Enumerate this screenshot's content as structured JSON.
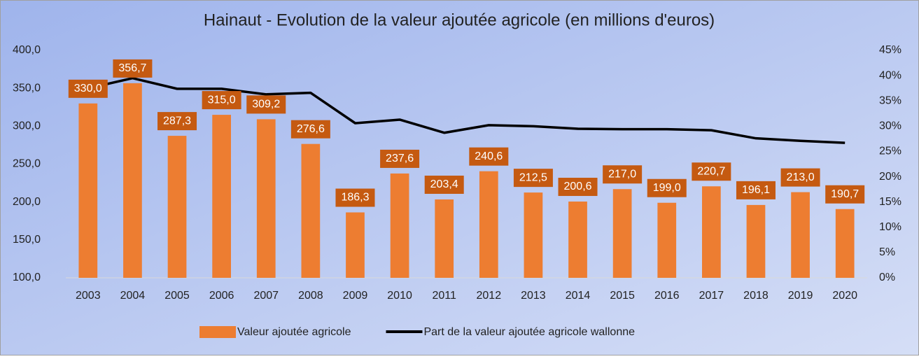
{
  "chart_data": {
    "type": "bar_line",
    "title": "Hainaut - Evolution de la valeur ajoutée agricole (en millions d'euros)",
    "categories": [
      "2003",
      "2004",
      "2005",
      "2006",
      "2007",
      "2008",
      "2009",
      "2010",
      "2011",
      "2012",
      "2013",
      "2014",
      "2015",
      "2016",
      "2017",
      "2018",
      "2019",
      "2020"
    ],
    "series": [
      {
        "name": "Valeur ajoutée agricole",
        "type": "bar",
        "color": "#ed7d31",
        "label_color": "#c55a11",
        "values": [
          330.0,
          356.7,
          287.3,
          315.0,
          309.2,
          276.6,
          186.3,
          237.6,
          203.4,
          240.6,
          212.5,
          200.6,
          217.0,
          199.0,
          220.7,
          196.1,
          213.0,
          190.7
        ],
        "value_labels": [
          "330,0",
          "356,7",
          "287,3",
          "315,0",
          "309,2",
          "276,6",
          "186,3",
          "237,6",
          "203,4",
          "240,6",
          "212,5",
          "200,6",
          "217,0",
          "199,0",
          "220,7",
          "196,1",
          "213,0",
          "190,7"
        ]
      },
      {
        "name": "Part de la valeur ajoutée agricole wallonne",
        "type": "line",
        "color": "#000000",
        "axis": "y2",
        "values": [
          37.5,
          39.5,
          37.4,
          37.4,
          36.3,
          36.6,
          30.6,
          31.3,
          28.7,
          30.2,
          30.0,
          29.5,
          29.4,
          29.4,
          29.2,
          27.6,
          27.1,
          26.7
        ]
      }
    ],
    "ylim": [
      100,
      400
    ],
    "yticks": [
      {
        "value": 100,
        "label": "100,0"
      },
      {
        "value": 150,
        "label": "150,0"
      },
      {
        "value": 200,
        "label": "200,0"
      },
      {
        "value": 250,
        "label": "250,0"
      },
      {
        "value": 300,
        "label": "300,0"
      },
      {
        "value": 350,
        "label": "350,0"
      },
      {
        "value": 400,
        "label": "400,0"
      }
    ],
    "y2lim": [
      0,
      45
    ],
    "y2ticks": [
      {
        "value": 0,
        "label": "0%"
      },
      {
        "value": 5,
        "label": "5%"
      },
      {
        "value": 10,
        "label": "10%"
      },
      {
        "value": 15,
        "label": "15%"
      },
      {
        "value": 20,
        "label": "20%"
      },
      {
        "value": 25,
        "label": "25%"
      },
      {
        "value": 30,
        "label": "30%"
      },
      {
        "value": 35,
        "label": "35%"
      },
      {
        "value": 40,
        "label": "40%"
      },
      {
        "value": 45,
        "label": "45%"
      }
    ],
    "legend": "bottom"
  }
}
